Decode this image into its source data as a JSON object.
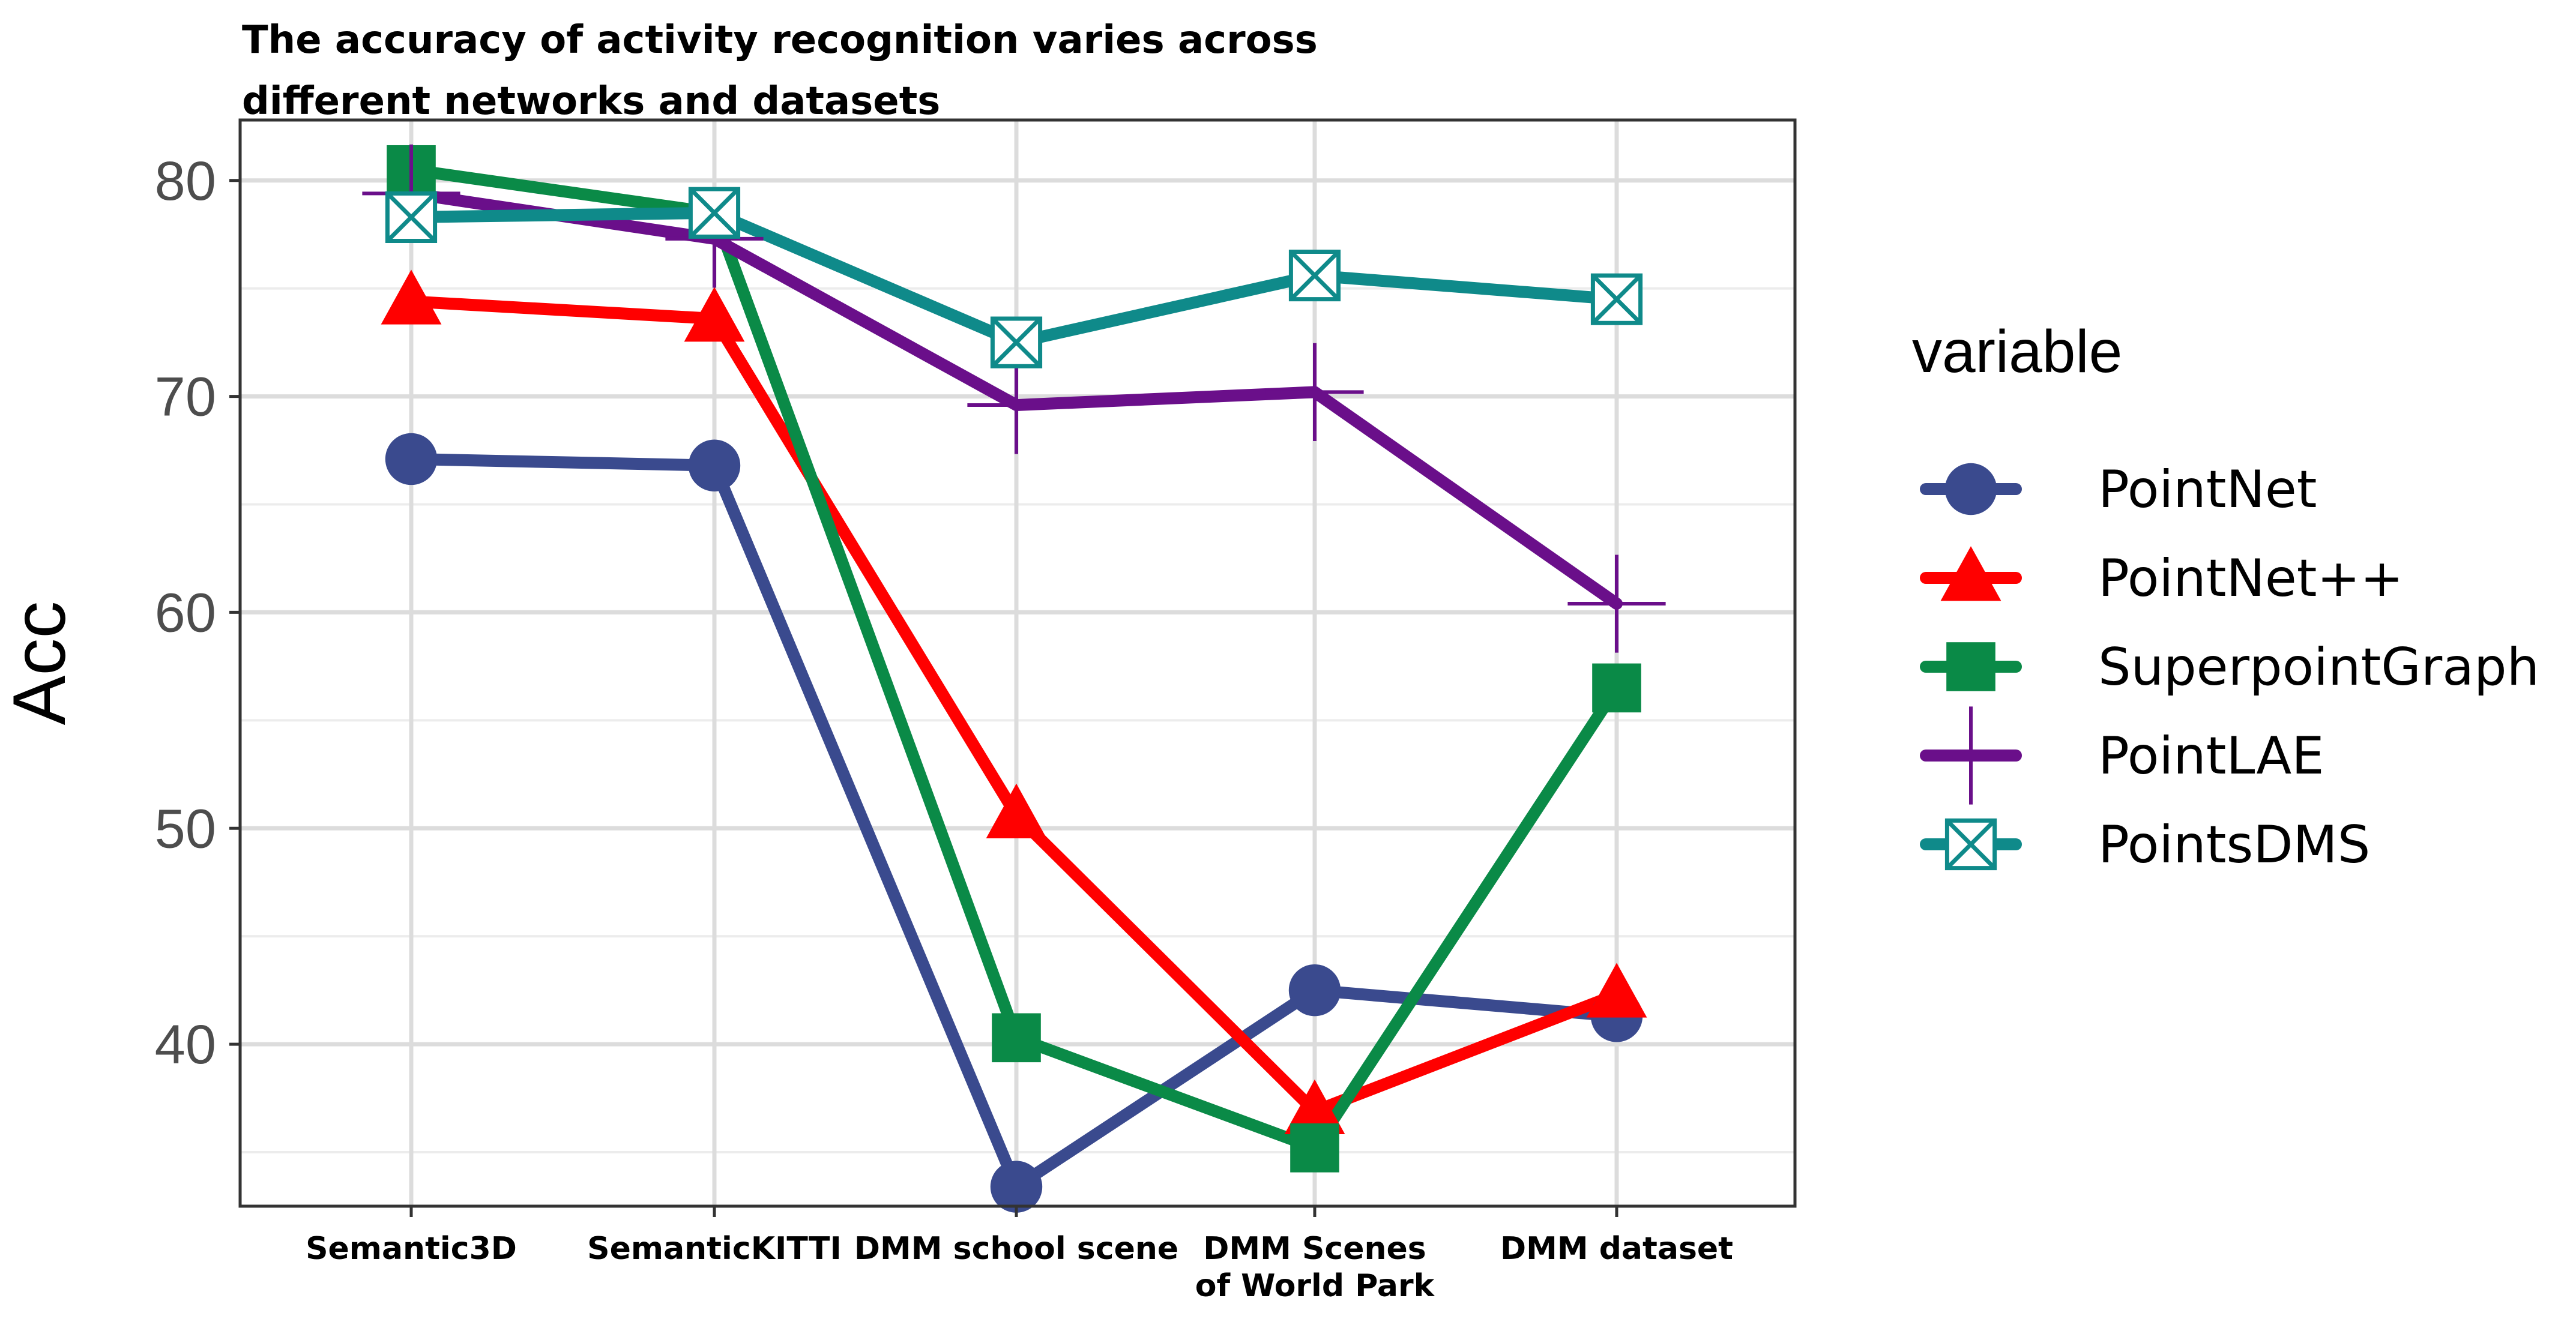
{
  "chart_data": {
    "type": "line",
    "title_lines": [
      "The accuracy of activity recognition varies across",
      "different networks and datasets"
    ],
    "xlabel": "",
    "ylabel": "Acc",
    "categories": [
      [
        "Semantic3D"
      ],
      [
        "SemanticKITTI"
      ],
      [
        "DMM school scene"
      ],
      [
        "DMM Scenes",
        "of World Park"
      ],
      [
        "DMM dataset"
      ]
    ],
    "ylim": [
      32.5,
      82.8
    ],
    "yticks": [
      40,
      50,
      60,
      70,
      80
    ],
    "grid": true,
    "legend": {
      "title": "variable",
      "position": "right"
    },
    "series": [
      {
        "name": "PointNet",
        "color": "#3a4a8e",
        "marker": "circle",
        "values": [
          67.1,
          66.8,
          33.4,
          42.5,
          41.3
        ]
      },
      {
        "name": "PointNet++",
        "color": "#ff0000",
        "marker": "triangle",
        "values": [
          74.4,
          73.6,
          50.6,
          36.9,
          42.3
        ]
      },
      {
        "name": "SuperpointGraph",
        "color": "#0a8a47",
        "marker": "square",
        "values": [
          80.5,
          78.5,
          40.3,
          35.2,
          56.5
        ]
      },
      {
        "name": "PointLAE",
        "color": "#6a0f8a",
        "marker": "plus",
        "values": [
          79.4,
          77.3,
          69.6,
          70.2,
          60.4
        ]
      },
      {
        "name": "PointsDMS",
        "color": "#0f8a8a",
        "marker": "boxx",
        "values": [
          78.3,
          78.5,
          72.5,
          75.6,
          74.5
        ]
      }
    ]
  }
}
